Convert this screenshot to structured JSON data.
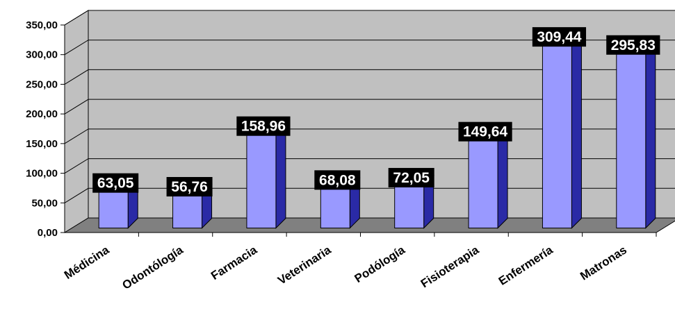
{
  "chart_data": {
    "type": "bar",
    "categories": [
      "Médicina",
      "Odontólogía",
      "Farmacia",
      "Veterinaria",
      "Podólogía",
      "Fisioterapia",
      "Enfermería",
      "Matronas"
    ],
    "values": [
      63.05,
      56.76,
      158.96,
      68.08,
      72.05,
      149.64,
      309.44,
      295.83
    ],
    "data_labels": [
      "63,05",
      "56,76",
      "158,96",
      "68,08",
      "72,05",
      "149,64",
      "309,44",
      "295,83"
    ],
    "y_ticks": [
      "0,00",
      "50,00",
      "100,00",
      "150,00",
      "200,00",
      "250,00",
      "300,00",
      "350,00"
    ],
    "ylim": [
      0,
      350
    ],
    "grid": true,
    "legend": "none",
    "style": "3d-column",
    "colors": {
      "bar_front": "#9999ff",
      "bar_side": "#2a2aa6",
      "bar_top": "#c4c4ff",
      "back_wall": "#c0c0c0",
      "floor": "#808080",
      "label_bg": "#000000",
      "label_text": "#ffffff"
    }
  }
}
